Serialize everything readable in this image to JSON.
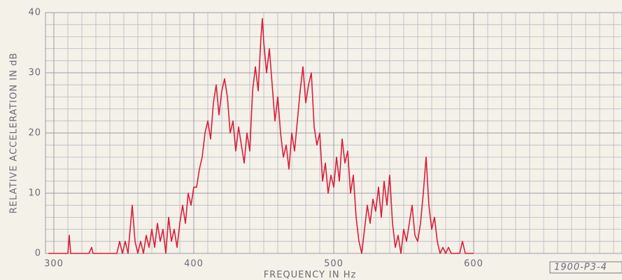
{
  "chart_data": {
    "type": "line",
    "x_label": "FREQUENCY IN Hz",
    "y_label": "RELATIVE ACCELERATION IN dB",
    "annotation": "1900-P3-4",
    "color": "#d81e3c",
    "grid": true,
    "xlim": [
      294,
      706
    ],
    "xticks": [
      300,
      400,
      500,
      600
    ],
    "ylim": [
      0,
      40
    ],
    "yticks": [
      0,
      10,
      20,
      30,
      40
    ],
    "x": [
      296,
      305,
      310,
      311,
      312,
      325,
      327,
      328,
      345,
      347,
      349,
      351,
      353,
      356,
      358,
      360,
      362,
      364,
      366,
      368,
      370,
      372,
      374,
      376,
      378,
      380,
      382,
      384,
      386,
      388,
      390,
      392,
      394,
      396,
      398,
      400,
      402,
      404,
      406,
      408,
      410,
      412,
      414,
      416,
      418,
      420,
      422,
      424,
      426,
      428,
      430,
      432,
      434,
      436,
      438,
      440,
      442,
      444,
      446,
      448,
      449,
      450,
      452,
      454,
      456,
      458,
      460,
      462,
      464,
      466,
      468,
      470,
      472,
      474,
      476,
      478,
      480,
      482,
      484,
      486,
      488,
      490,
      492,
      494,
      496,
      498,
      500,
      502,
      504,
      506,
      508,
      510,
      512,
      514,
      516,
      518,
      520,
      522,
      524,
      526,
      528,
      530,
      532,
      534,
      536,
      538,
      540,
      542,
      544,
      546,
      548,
      550,
      552,
      554,
      556,
      558,
      560,
      562,
      564,
      566,
      568,
      570,
      572,
      574,
      576,
      578,
      580,
      582,
      584,
      590,
      592,
      594,
      600
    ],
    "values": [
      0,
      0,
      0,
      3,
      0,
      0,
      1,
      0,
      0,
      2,
      0,
      2,
      0,
      8,
      2,
      0,
      2,
      0,
      3,
      1,
      4,
      1,
      5,
      2,
      4,
      0,
      6,
      2,
      4,
      1,
      5,
      8,
      5,
      10,
      8,
      11,
      11,
      14,
      16,
      20,
      22,
      19,
      25,
      28,
      23,
      27,
      29,
      26,
      20,
      22,
      17,
      21,
      18,
      15,
      20,
      17,
      27,
      31,
      27,
      36,
      39,
      35,
      30,
      34,
      28,
      22,
      26,
      20,
      16,
      18,
      14,
      20,
      17,
      22,
      27,
      31,
      25,
      28,
      30,
      21,
      18,
      20,
      12,
      15,
      10,
      13,
      11,
      16,
      12,
      19,
      15,
      17,
      10,
      13,
      6,
      2,
      0,
      4,
      8,
      5,
      9,
      7,
      11,
      6,
      12,
      8,
      13,
      5,
      1,
      3,
      0,
      4,
      2,
      5,
      8,
      3,
      2,
      5,
      10,
      16,
      8,
      4,
      6,
      2,
      0,
      1,
      0,
      1,
      0,
      0,
      2,
      0,
      0
    ]
  }
}
